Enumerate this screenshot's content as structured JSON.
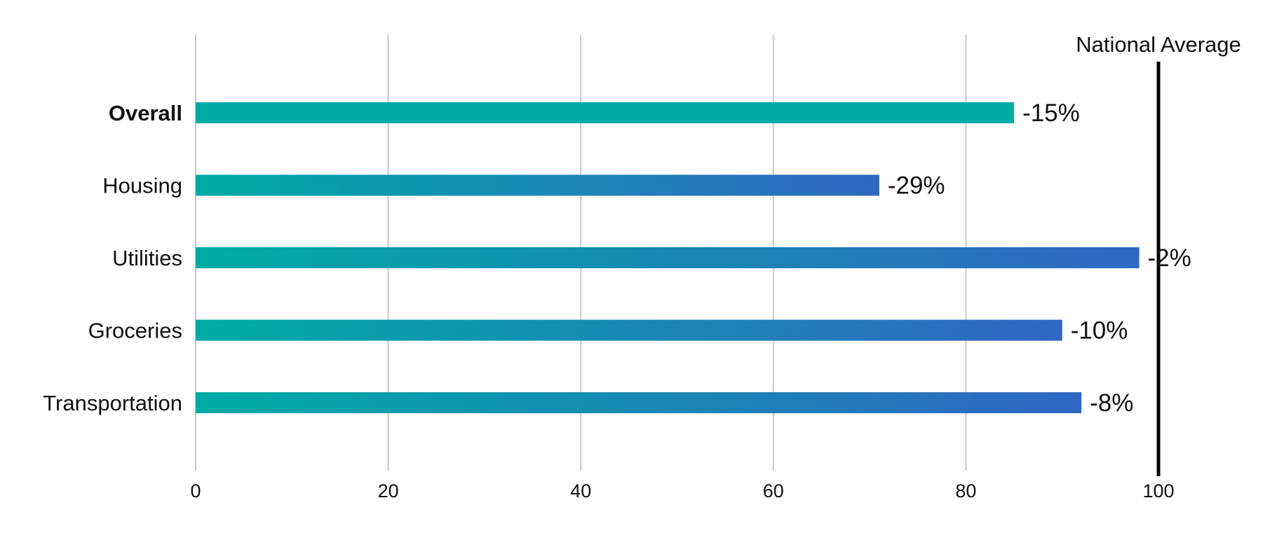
{
  "chart_data": {
    "type": "bar",
    "orientation": "horizontal",
    "title": "",
    "xlabel": "",
    "ylabel": "",
    "categories": [
      "Overall",
      "Housing",
      "Utilities",
      "Groceries",
      "Transportation"
    ],
    "bold_categories": [
      "Overall"
    ],
    "values": [
      85,
      71,
      98,
      90,
      92
    ],
    "value_labels": [
      "-15%",
      "-29%",
      "-2%",
      "-10%",
      "-8%"
    ],
    "xlim": [
      0,
      100
    ],
    "xticks": [
      0,
      20,
      40,
      60,
      80,
      100
    ],
    "xtick_labels": [
      "0",
      "20",
      "40",
      "60",
      "80",
      "100"
    ],
    "grid": true,
    "legend": "none",
    "reference_line": {
      "value": 100,
      "label": "National Average",
      "color": "#000000"
    },
    "colors": {
      "overall_bar": "#00ABA5",
      "gradient_start": "#00ABA5",
      "gradient_end": "#3067C2",
      "grid": "#C8C8C8"
    }
  }
}
